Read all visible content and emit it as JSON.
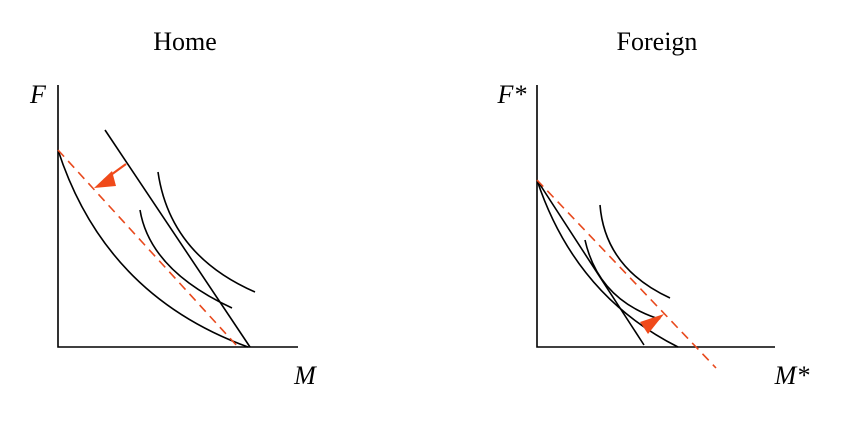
{
  "panels": [
    {
      "title": "Home",
      "y_axis": "F",
      "x_axis": "M"
    },
    {
      "title": "Foreign",
      "y_axis": "F*",
      "x_axis": "M*"
    }
  ]
}
